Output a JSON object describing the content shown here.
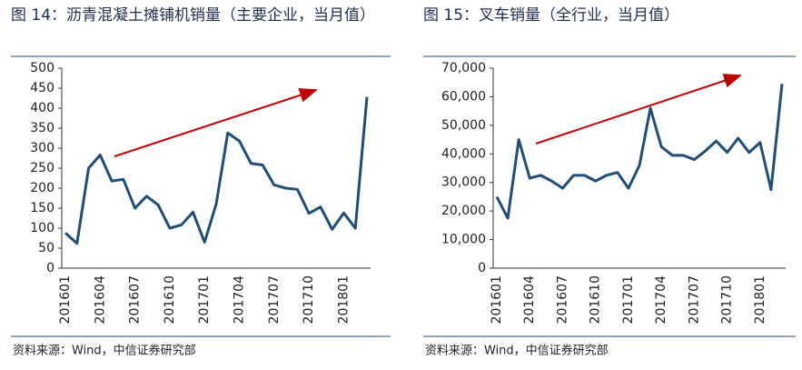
{
  "chart_data": [
    {
      "type": "line",
      "title": "图 14：沥青混凝土摊铺机销量（主要企业，当月值）",
      "categories": [
        "201601",
        null,
        null,
        "201604",
        null,
        null,
        "201607",
        null,
        null,
        "201610",
        null,
        null,
        "201701",
        null,
        null,
        "201704",
        null,
        null,
        "201707",
        null,
        null,
        "201710",
        null,
        null,
        "201801",
        null,
        null
      ],
      "series": [
        {
          "name": "销量",
          "color": "#1f4e79",
          "values": [
            88,
            62,
            250,
            283,
            218,
            222,
            150,
            180,
            158,
            100,
            108,
            140,
            65,
            160,
            338,
            318,
            262,
            258,
            208,
            200,
            197,
            137,
            153,
            97,
            138,
            100,
            428
          ]
        }
      ],
      "ylim": [
        0,
        500
      ],
      "yticks": [
        0,
        50,
        100,
        150,
        200,
        250,
        300,
        350,
        400,
        450,
        500
      ],
      "source": "资料来源：Wind，中信证券研究部"
    },
    {
      "type": "line",
      "title": "图 15：叉车销量（全行业，当月值）",
      "categories": [
        "201601",
        null,
        null,
        "201604",
        null,
        null,
        "201607",
        null,
        null,
        "201610",
        null,
        null,
        "201701",
        null,
        null,
        "201704",
        null,
        null,
        "201707",
        null,
        null,
        "201710",
        null,
        null,
        "201801",
        null,
        null
      ],
      "series": [
        {
          "name": "销量",
          "color": "#1f4e79",
          "values": [
            25000,
            17500,
            45000,
            31500,
            32500,
            30500,
            28000,
            32500,
            32500,
            30500,
            32500,
            33500,
            28000,
            36000,
            56000,
            42500,
            39500,
            39500,
            38000,
            41000,
            44500,
            40500,
            45500,
            40500,
            44000,
            27500,
            64500
          ]
        }
      ],
      "ylim": [
        0,
        70000
      ],
      "yticks": [
        0,
        {
          "value": 10000,
          "label": "10,000"
        },
        {
          "value": 20000,
          "label": "20,000"
        },
        {
          "value": 30000,
          "label": "30,000"
        },
        {
          "value": 40000,
          "label": "40,000"
        },
        {
          "value": 50000,
          "label": "50,000"
        },
        {
          "value": 60000,
          "label": "60,000"
        },
        {
          "value": 70000,
          "label": "70,000"
        }
      ],
      "source": "资料来源：Wind，中信证券研究部"
    }
  ]
}
